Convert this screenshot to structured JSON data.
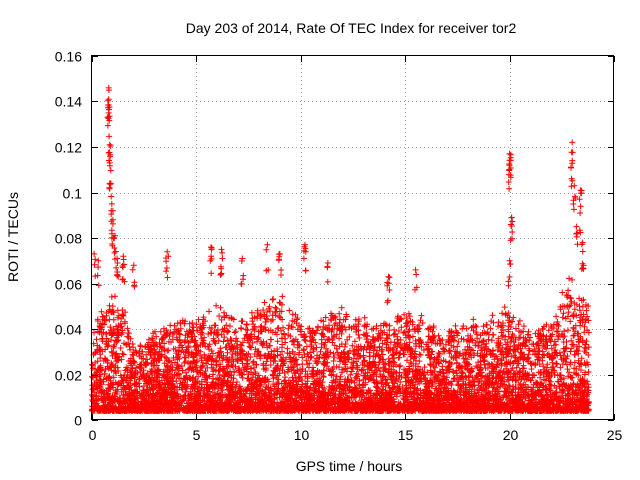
{
  "chart_data": {
    "type": "scatter",
    "title": "Day 203 of 2014, Rate Of TEC Index for receiver tor2",
    "xlabel": "GPS time / hours",
    "ylabel": "ROTI / TECUs",
    "xlim": [
      0,
      25
    ],
    "ylim": [
      0,
      0.16
    ],
    "xticks": [
      0,
      5,
      10,
      15,
      20,
      25
    ],
    "yticks": [
      0,
      0.02,
      0.04,
      0.06,
      0.08,
      0.1,
      0.12,
      0.14,
      0.16
    ],
    "xtick_labels": [
      "0",
      "5",
      "10",
      "15",
      "20",
      "25"
    ],
    "ytick_labels": [
      "0",
      "0.02",
      "0.04",
      "0.06",
      "0.08",
      "0.1",
      "0.12",
      "0.14",
      "0.16"
    ],
    "grid": true,
    "marker": "+",
    "color": "#ff0000",
    "series": [
      {
        "name": "ROTI",
        "envelope": {
          "hours": [
            0,
            0.5,
            1,
            1.5,
            2,
            3,
            4,
            5,
            6,
            7,
            8,
            8.5,
            9,
            10,
            11,
            12,
            13,
            14,
            15,
            16,
            17,
            18,
            19,
            20,
            20.5,
            21,
            22,
            22.5,
            23,
            23.3,
            23.8
          ],
          "typical_upper": [
            0.035,
            0.045,
            0.05,
            0.045,
            0.03,
            0.035,
            0.04,
            0.04,
            0.045,
            0.04,
            0.045,
            0.05,
            0.05,
            0.04,
            0.04,
            0.045,
            0.04,
            0.04,
            0.045,
            0.04,
            0.035,
            0.04,
            0.04,
            0.045,
            0.04,
            0.035,
            0.04,
            0.05,
            0.06,
            0.055,
            0.045
          ]
        },
        "peaks": [
          {
            "x": 0.1,
            "y": 0.073
          },
          {
            "x": 0.3,
            "y": 0.07
          },
          {
            "x": 0.8,
            "y": 0.146
          },
          {
            "x": 0.8,
            "y": 0.141
          },
          {
            "x": 0.8,
            "y": 0.135
          },
          {
            "x": 0.85,
            "y": 0.121
          },
          {
            "x": 0.85,
            "y": 0.113
          },
          {
            "x": 0.9,
            "y": 0.104
          },
          {
            "x": 0.95,
            "y": 0.095
          },
          {
            "x": 1.0,
            "y": 0.088
          },
          {
            "x": 1.1,
            "y": 0.081
          },
          {
            "x": 1.2,
            "y": 0.071
          },
          {
            "x": 1.5,
            "y": 0.072
          },
          {
            "x": 2.0,
            "y": 0.068
          },
          {
            "x": 3.6,
            "y": 0.074
          },
          {
            "x": 5.7,
            "y": 0.076
          },
          {
            "x": 6.2,
            "y": 0.075
          },
          {
            "x": 7.2,
            "y": 0.071
          },
          {
            "x": 8.4,
            "y": 0.077
          },
          {
            "x": 9.0,
            "y": 0.073
          },
          {
            "x": 10.2,
            "y": 0.077
          },
          {
            "x": 11.3,
            "y": 0.069
          },
          {
            "x": 14.2,
            "y": 0.063
          },
          {
            "x": 15.5,
            "y": 0.066
          },
          {
            "x": 20.0,
            "y": 0.117
          },
          {
            "x": 20.0,
            "y": 0.112
          },
          {
            "x": 20.1,
            "y": 0.089
          },
          {
            "x": 20.0,
            "y": 0.07
          },
          {
            "x": 23.0,
            "y": 0.122
          },
          {
            "x": 23.0,
            "y": 0.114
          },
          {
            "x": 23.1,
            "y": 0.103
          },
          {
            "x": 23.4,
            "y": 0.101
          },
          {
            "x": 23.4,
            "y": 0.094
          },
          {
            "x": 23.2,
            "y": 0.085
          },
          {
            "x": 23.5,
            "y": 0.078
          }
        ]
      }
    ]
  }
}
